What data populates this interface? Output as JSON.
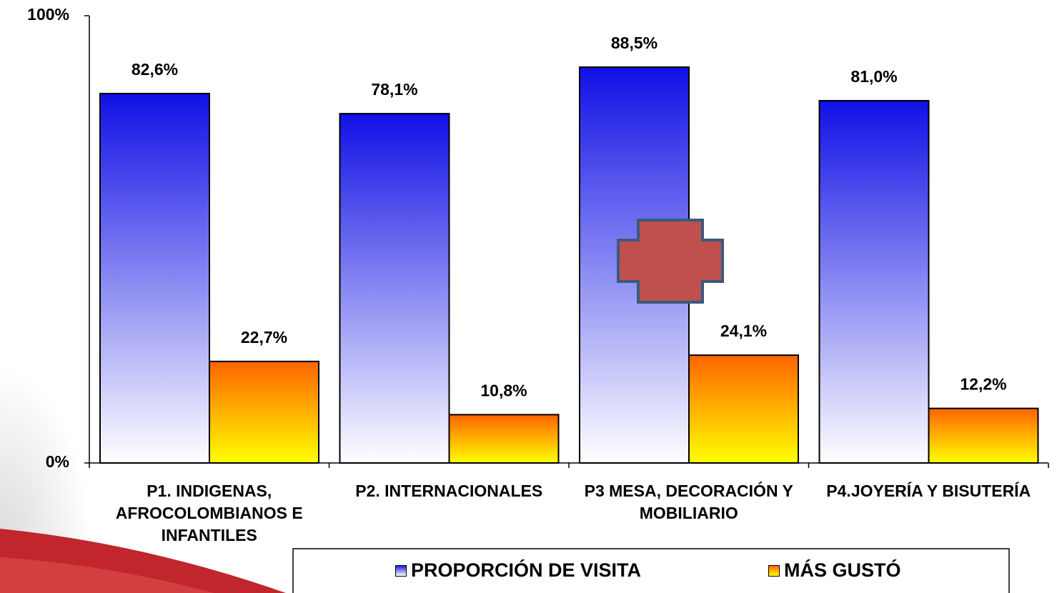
{
  "chart_data": {
    "type": "bar",
    "categories": [
      "P1. INDIGENAS, AFROCOLOMBIANOS E INFANTILES",
      "P2. INTERNACIONALES",
      "P3 MESA, DECORACIÓN Y MOBILIARIO",
      "P4.JOYERÍA Y BISUTERÍA"
    ],
    "series": [
      {
        "name": "PROPORCIÓN DE VISITA",
        "color": "#1a1ae6",
        "values": [
          82.6,
          78.1,
          88.5,
          81.0
        ],
        "value_labels": [
          "82,6%",
          "78,1%",
          "88,5%",
          "81,0%"
        ]
      },
      {
        "name": "MÁS GUSTÓ",
        "color": "#ff6a00",
        "values": [
          22.7,
          10.8,
          24.1,
          12.2
        ],
        "value_labels": [
          "22,7%",
          "10,8%",
          "24,1%",
          "12,2%"
        ]
      }
    ],
    "ylim": [
      0,
      100
    ],
    "yticks": [
      {
        "value": 0,
        "label": "0%"
      },
      {
        "value": 100,
        "label": "100%"
      }
    ],
    "grid": false,
    "legend": "bottom"
  }
}
